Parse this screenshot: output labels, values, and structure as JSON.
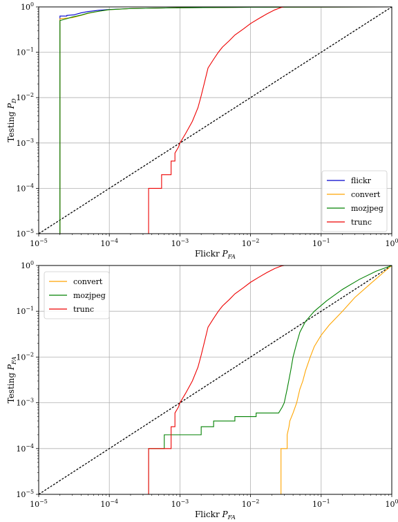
{
  "chart_data": [
    {
      "type": "line",
      "scale": "log-log",
      "xlabel": "Flickr P_FA",
      "ylabel": "Testing P_D",
      "xlim": [
        1e-05,
        1
      ],
      "ylim": [
        1e-05,
        1
      ],
      "xticks": [
        "10^-5",
        "10^-4",
        "10^-3",
        "10^-2",
        "10^-1",
        "10^0"
      ],
      "yticks": [
        "10^-5",
        "10^-4",
        "10^-3",
        "10^-2",
        "10^-1",
        "10^0"
      ],
      "grid": true,
      "legend": "bottom-right",
      "reference": {
        "name": "chance",
        "x": [
          1e-05,
          1
        ],
        "y": [
          1e-05,
          1
        ],
        "color": "#000000",
        "style": "dashed"
      },
      "series": [
        {
          "name": "flickr",
          "color": "#0000cc",
          "x": [
            2e-05,
            2e-05,
            2.5e-05,
            2.5e-05,
            3.2e-05,
            3.5e-05,
            4e-05,
            5e-05,
            7e-05,
            0.0001,
            0.0002,
            0.001,
            0.01,
            1
          ],
          "y": [
            1e-05,
            0.63,
            0.63,
            0.65,
            0.67,
            0.7,
            0.74,
            0.79,
            0.84,
            0.88,
            0.92,
            0.96,
            0.985,
            1
          ]
        },
        {
          "name": "convert",
          "color": "#ffa500",
          "x": [
            2e-05,
            2e-05,
            3e-05,
            4e-05,
            5e-05,
            7e-05,
            0.0001,
            0.0002,
            0.001,
            0.01,
            1
          ],
          "y": [
            1e-05,
            0.55,
            0.58,
            0.65,
            0.72,
            0.8,
            0.87,
            0.92,
            0.96,
            0.985,
            1
          ]
        },
        {
          "name": "mozjpeg",
          "color": "#008000",
          "x": [
            2e-05,
            2e-05,
            2.5e-05,
            3e-05,
            4e-05,
            5e-05,
            7e-05,
            0.0001,
            0.0002,
            0.001,
            0.01,
            1
          ],
          "y": [
            1e-05,
            0.5,
            0.55,
            0.6,
            0.66,
            0.73,
            0.8,
            0.87,
            0.92,
            0.96,
            0.985,
            1
          ]
        },
        {
          "name": "trunc",
          "color": "#ee0000",
          "x": [
            0.00036,
            0.00036,
            0.00055,
            0.00055,
            0.00075,
            0.00075,
            0.00085,
            0.00085,
            0.00095,
            0.001,
            0.0012,
            0.0015,
            0.0018,
            0.002,
            0.0022,
            0.0025,
            0.003,
            0.0035,
            0.004,
            0.005,
            0.006,
            0.008,
            0.01,
            0.013,
            0.017,
            0.022,
            0.027,
            0.03,
            1
          ],
          "y": [
            1e-05,
            0.0001,
            0.0001,
            0.0002,
            0.0002,
            0.0004,
            0.0004,
            0.0006,
            0.0008,
            0.001,
            0.0016,
            0.003,
            0.006,
            0.011,
            0.02,
            0.045,
            0.07,
            0.1,
            0.13,
            0.18,
            0.24,
            0.33,
            0.43,
            0.55,
            0.7,
            0.86,
            0.97,
            1,
            1
          ]
        }
      ]
    },
    {
      "type": "line",
      "scale": "log-log",
      "xlabel": "Flickr P_FA",
      "ylabel": "Testing P_FA",
      "xlim": [
        1e-05,
        1
      ],
      "ylim": [
        1e-05,
        1
      ],
      "xticks": [
        "10^-5",
        "10^-4",
        "10^-3",
        "10^-2",
        "10^-1",
        "10^0"
      ],
      "yticks": [
        "10^-5",
        "10^-4",
        "10^-3",
        "10^-2",
        "10^-1",
        "10^0"
      ],
      "grid": true,
      "legend": "top-left",
      "reference": {
        "name": "chance",
        "x": [
          1e-05,
          1
        ],
        "y": [
          1e-05,
          1
        ],
        "color": "#000000",
        "style": "dashed"
      },
      "series": [
        {
          "name": "convert",
          "color": "#ffa500",
          "x": [
            0.027,
            0.027,
            0.033,
            0.033,
            0.035,
            0.036,
            0.04,
            0.045,
            0.05,
            0.055,
            0.06,
            0.07,
            0.08,
            0.1,
            0.13,
            0.2,
            0.3,
            0.5,
            0.8,
            1
          ],
          "y": [
            1e-05,
            0.0001,
            0.0001,
            0.0002,
            0.0003,
            0.0004,
            0.0006,
            0.001,
            0.002,
            0.003,
            0.005,
            0.01,
            0.017,
            0.03,
            0.05,
            0.1,
            0.2,
            0.4,
            0.75,
            1
          ]
        },
        {
          "name": "mozjpeg",
          "color": "#008000",
          "x": [
            0.00036,
            0.00036,
            0.0006,
            0.0006,
            0.002,
            0.002,
            0.003,
            0.003,
            0.006,
            0.006,
            0.012,
            0.012,
            0.025,
            0.028,
            0.03,
            0.033,
            0.037,
            0.04,
            0.045,
            0.05,
            0.06,
            0.08,
            0.12,
            0.2,
            0.35,
            0.6,
            1
          ],
          "y": [
            1e-05,
            0.0001,
            0.0001,
            0.0002,
            0.0002,
            0.0003,
            0.0003,
            0.0004,
            0.0004,
            0.0005,
            0.0005,
            0.0006,
            0.0006,
            0.0008,
            0.001,
            0.002,
            0.005,
            0.01,
            0.02,
            0.035,
            0.06,
            0.1,
            0.17,
            0.3,
            0.5,
            0.75,
            1
          ]
        },
        {
          "name": "trunc",
          "color": "#ee0000",
          "x": [
            0.00036,
            0.00036,
            0.00075,
            0.00075,
            0.00085,
            0.00085,
            0.00095,
            0.001,
            0.0012,
            0.0015,
            0.0018,
            0.002,
            0.0022,
            0.0025,
            0.003,
            0.0035,
            0.004,
            0.005,
            0.006,
            0.008,
            0.01,
            0.013,
            0.017,
            0.022,
            0.027,
            0.03,
            1
          ],
          "y": [
            1e-05,
            0.0001,
            0.0001,
            0.0003,
            0.0003,
            0.0006,
            0.0008,
            0.001,
            0.0016,
            0.003,
            0.006,
            0.011,
            0.02,
            0.045,
            0.07,
            0.1,
            0.13,
            0.18,
            0.24,
            0.33,
            0.43,
            0.55,
            0.7,
            0.86,
            0.97,
            1,
            1
          ]
        }
      ]
    }
  ]
}
